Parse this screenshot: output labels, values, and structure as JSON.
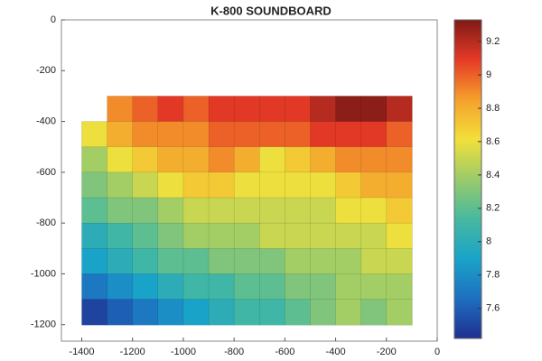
{
  "chart_data": {
    "type": "contour",
    "title": "K-800 SOUNDBOARD",
    "x": [
      -1350,
      -1250,
      -1150,
      -1050,
      -950,
      -850,
      -750,
      -650,
      -550,
      -450,
      -350,
      -250,
      -150
    ],
    "y": [
      -350,
      -450,
      -550,
      -650,
      -750,
      -850,
      -950,
      -1050,
      -1150
    ],
    "z": [
      [
        null,
        8.9,
        9.0,
        9.1,
        9.0,
        9.1,
        9.1,
        9.1,
        9.1,
        9.2,
        9.3,
        9.3,
        9.2
      ],
      [
        8.6,
        8.8,
        8.9,
        8.9,
        8.9,
        9.0,
        9.0,
        9.0,
        9.0,
        9.1,
        9.1,
        9.1,
        9.0
      ],
      [
        8.4,
        8.6,
        8.7,
        8.8,
        8.8,
        8.9,
        8.8,
        8.6,
        8.7,
        8.8,
        8.9,
        8.9,
        8.9
      ],
      [
        8.3,
        8.4,
        8.5,
        8.6,
        8.7,
        8.7,
        8.6,
        8.6,
        8.6,
        8.6,
        8.7,
        8.8,
        8.8
      ],
      [
        8.2,
        8.3,
        8.3,
        8.4,
        8.5,
        8.5,
        8.5,
        8.5,
        8.5,
        8.5,
        8.6,
        8.6,
        8.7
      ],
      [
        8.0,
        8.1,
        8.2,
        8.3,
        8.4,
        8.4,
        8.4,
        8.5,
        8.5,
        8.5,
        8.5,
        8.5,
        8.6
      ],
      [
        7.9,
        8.0,
        8.1,
        8.2,
        8.2,
        8.3,
        8.3,
        8.3,
        8.4,
        8.4,
        8.4,
        8.5,
        8.5
      ],
      [
        7.7,
        7.8,
        7.9,
        8.0,
        8.1,
        8.1,
        8.2,
        8.2,
        8.3,
        8.3,
        8.4,
        8.4,
        8.4
      ],
      [
        7.5,
        7.6,
        7.7,
        7.8,
        7.9,
        8.0,
        8.1,
        8.1,
        8.2,
        8.3,
        8.4,
        8.3,
        8.4
      ]
    ],
    "xlim": [
      -1480,
      0
    ],
    "xticks": [
      -1400,
      -1200,
      -1000,
      -800,
      -600,
      -400,
      -200,
      0
    ],
    "ylim": [
      -1265,
      0
    ],
    "yticks": [
      0,
      -200,
      -400,
      -600,
      -800,
      -1000,
      -1200
    ],
    "clim": [
      7.42,
      9.33
    ],
    "cticks": [
      7.6,
      7.8,
      8,
      8.2,
      8.4,
      8.6,
      8.8,
      9,
      9.2
    ],
    "colormap": [
      "#1f2f8f",
      "#1d6fc0",
      "#1aa3c8",
      "#47b9a0",
      "#9acb6a",
      "#f2e03a",
      "#f5a02c",
      "#e53a26",
      "#7e1a16"
    ]
  }
}
